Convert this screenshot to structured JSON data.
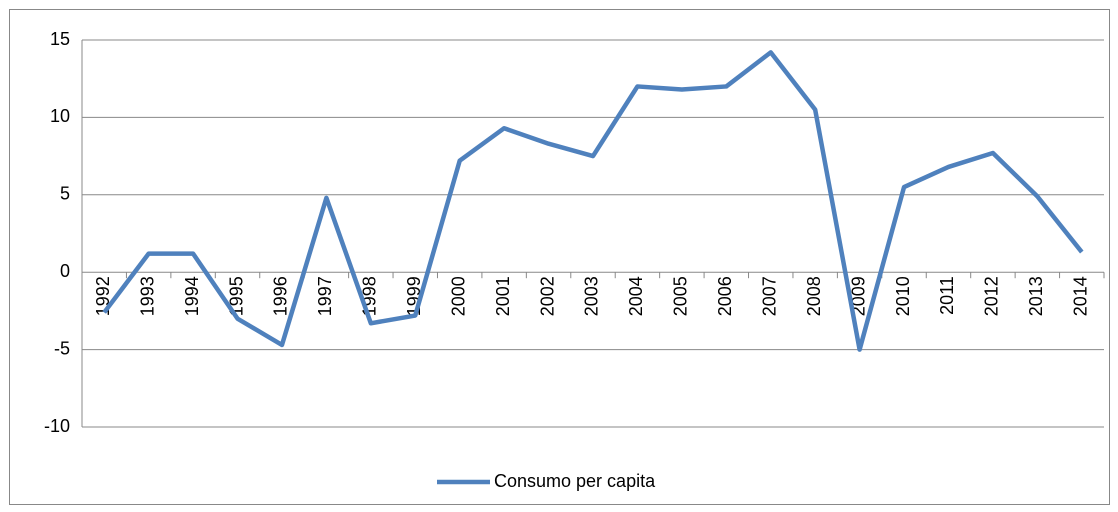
{
  "chart_data": {
    "type": "line",
    "categories": [
      "1992",
      "1993",
      "1994",
      "1995",
      "1996",
      "1997",
      "1998",
      "1999",
      "2000",
      "2001",
      "2002",
      "2003",
      "2004",
      "2005",
      "2006",
      "2007",
      "2008",
      "2009",
      "2010",
      "2011",
      "2012",
      "2013",
      "2014"
    ],
    "series": [
      {
        "name": "Consumo per capita",
        "color": "#4f81bd",
        "values": [
          -2.6,
          1.2,
          1.2,
          -3.0,
          -4.7,
          4.8,
          -3.3,
          -2.8,
          7.2,
          9.3,
          8.3,
          7.5,
          12.0,
          11.8,
          12.0,
          14.2,
          10.5,
          -5.0,
          5.5,
          6.8,
          7.7,
          4.9,
          1.3
        ]
      }
    ],
    "ylim": [
      -10,
      15
    ],
    "yticks": [
      -10,
      -5,
      0,
      5,
      10,
      15
    ],
    "grid": true,
    "legend": "bottom"
  }
}
